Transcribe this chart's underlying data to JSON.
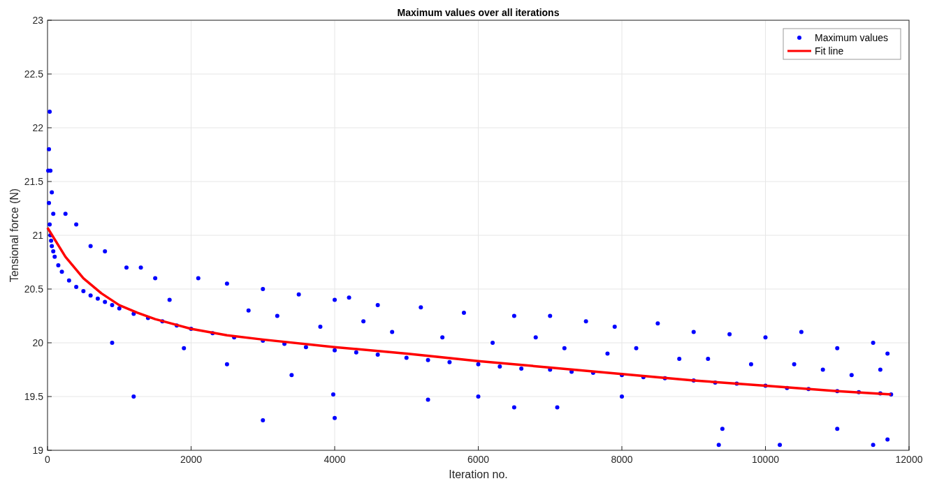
{
  "chart_data": {
    "type": "scatter",
    "title": "Maximum values over all iterations",
    "xlabel": "Iteration no.",
    "ylabel": "Tensional force (N)",
    "xlim": [
      0,
      12000
    ],
    "xticks": [
      0,
      2000,
      4000,
      6000,
      8000,
      10000,
      12000
    ],
    "ylim": [
      19,
      23
    ],
    "yticks": [
      19,
      19.5,
      20,
      20.5,
      21,
      21.5,
      22,
      22.5,
      23
    ],
    "grid": true,
    "legend": "top right",
    "marker": "circle",
    "series": [
      {
        "name": "Maximum values",
        "color": "#0000ff",
        "x": [
          10,
          20,
          30,
          40,
          50,
          60,
          80,
          100,
          150,
          200,
          300,
          400,
          500,
          600,
          700,
          800,
          900,
          1000,
          1200,
          1400,
          1600,
          1800,
          2000,
          2300,
          2600,
          3000,
          3300,
          3600,
          4000,
          4300,
          4600,
          5000,
          5300,
          5600,
          6000,
          6300,
          6600,
          7000,
          7300,
          7600,
          8000,
          8300,
          8600,
          9000,
          9300,
          9600,
          10000,
          10300,
          10600,
          11000,
          11300,
          11600,
          11750,
          30,
          20,
          40,
          60,
          80,
          250,
          400,
          600,
          800,
          1100,
          1300,
          1500,
          2100,
          2500,
          3000,
          3500,
          4000,
          4200,
          4600,
          5200,
          5800,
          6500,
          7000,
          7500,
          7900,
          8500,
          9000,
          9500,
          10000,
          10500,
          11000,
          11500,
          11700,
          900,
          1200,
          1900,
          2500,
          3000,
          3400,
          4000,
          3980,
          5300,
          6000,
          6500,
          7100,
          8000,
          9350,
          9400,
          10200,
          11000,
          11500,
          11700,
          1700,
          2800,
          3200,
          3800,
          4400,
          4800,
          5500,
          6200,
          6800,
          7200,
          7800,
          8200,
          8800,
          9200,
          9800,
          10400,
          10800,
          11200,
          11600
        ],
        "values": [
          21.6,
          21.3,
          21.1,
          21.0,
          20.95,
          20.9,
          20.85,
          20.8,
          20.72,
          20.66,
          20.58,
          20.52,
          20.48,
          20.44,
          20.41,
          20.38,
          20.35,
          20.32,
          20.27,
          20.23,
          20.2,
          20.16,
          20.13,
          20.09,
          20.05,
          20.02,
          19.99,
          19.96,
          19.93,
          19.91,
          19.89,
          19.86,
          19.84,
          19.82,
          19.8,
          19.78,
          19.76,
          19.75,
          19.73,
          19.72,
          19.7,
          19.68,
          19.67,
          19.65,
          19.63,
          19.62,
          19.6,
          19.58,
          19.57,
          19.55,
          19.54,
          19.53,
          19.52,
          22.15,
          21.8,
          21.6,
          21.4,
          21.2,
          21.2,
          21.1,
          20.9,
          20.85,
          20.7,
          20.7,
          20.6,
          20.6,
          20.55,
          20.5,
          20.45,
          20.4,
          20.42,
          20.35,
          20.33,
          20.28,
          20.25,
          20.25,
          20.2,
          20.15,
          20.18,
          20.1,
          20.08,
          20.05,
          20.1,
          19.95,
          20.0,
          19.9,
          20.0,
          19.5,
          19.95,
          19.8,
          19.28,
          19.7,
          19.3,
          19.52,
          19.47,
          19.5,
          19.4,
          19.4,
          19.5,
          19.05,
          19.2,
          19.05,
          19.2,
          19.05,
          19.1,
          20.4,
          20.3,
          20.25,
          20.15,
          20.2,
          20.1,
          20.05,
          20.0,
          20.05,
          19.95,
          19.9,
          19.95,
          19.85,
          19.85,
          19.8,
          19.8,
          19.75,
          19.7,
          19.75
        ]
      },
      {
        "name": "Fit line",
        "color": "#ff0000",
        "type": "line",
        "marker": "none",
        "x": [
          0,
          250,
          500,
          750,
          1000,
          1250,
          1500,
          2000,
          2500,
          3000,
          4000,
          5000,
          6000,
          7000,
          8000,
          9000,
          10000,
          11000,
          11750
        ],
        "values": [
          21.07,
          20.8,
          20.6,
          20.46,
          20.35,
          20.28,
          20.22,
          20.13,
          20.07,
          20.03,
          19.96,
          19.9,
          19.83,
          19.77,
          19.71,
          19.65,
          19.6,
          19.55,
          19.52
        ]
      }
    ]
  }
}
